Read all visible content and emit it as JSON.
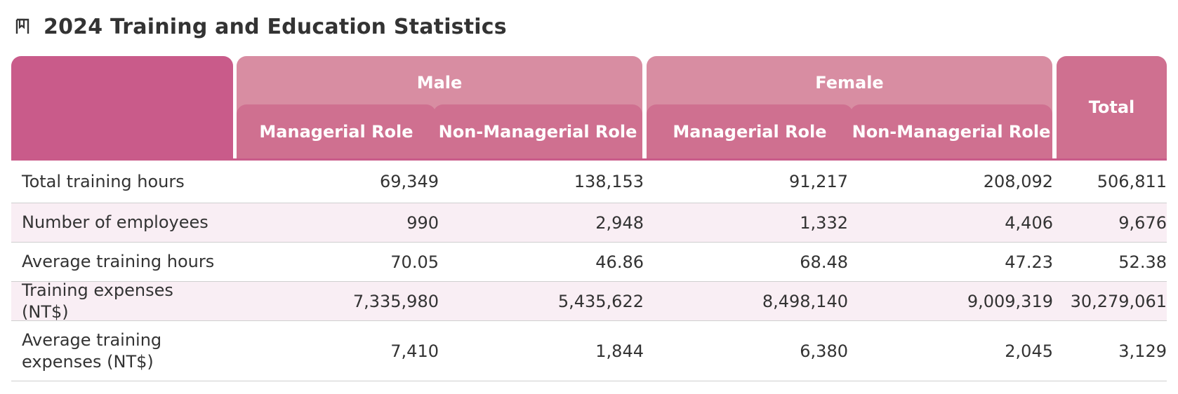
{
  "page": {
    "title": "2024 Training and Education Statistics",
    "icon": "book-icon"
  },
  "table": {
    "groups": [
      {
        "label": "Male",
        "subcolumns": [
          "Managerial Role",
          "Non-Managerial Role"
        ]
      },
      {
        "label": "Female",
        "subcolumns": [
          "Managerial Role",
          "Non-Managerial Role"
        ]
      }
    ],
    "total_label": "Total",
    "rows": [
      {
        "label": "Total training hours",
        "values": [
          "69,349",
          "138,153",
          "91,217",
          "208,092",
          "506,811"
        ]
      },
      {
        "label": "Number of employees",
        "values": [
          "990",
          "2,948",
          "1,332",
          "4,406",
          "9,676"
        ]
      },
      {
        "label": "Average training hours",
        "values": [
          "70.05",
          "46.86",
          "68.48",
          "47.23",
          "52.38"
        ]
      },
      {
        "label": "Training expenses (NT$)",
        "values": [
          "7,335,980",
          "5,435,622",
          "8,498,140",
          "9,009,319",
          "30,279,061"
        ]
      },
      {
        "label": "Average training expenses (NT$)",
        "values": [
          "7,410",
          "1,844",
          "6,380",
          "2,045",
          "3,129"
        ]
      }
    ]
  },
  "colors": {
    "corner": "#c95b8a",
    "group_header": "#d88da2",
    "sub_header": "#cf7090",
    "alt_row": "#f9eef4"
  }
}
